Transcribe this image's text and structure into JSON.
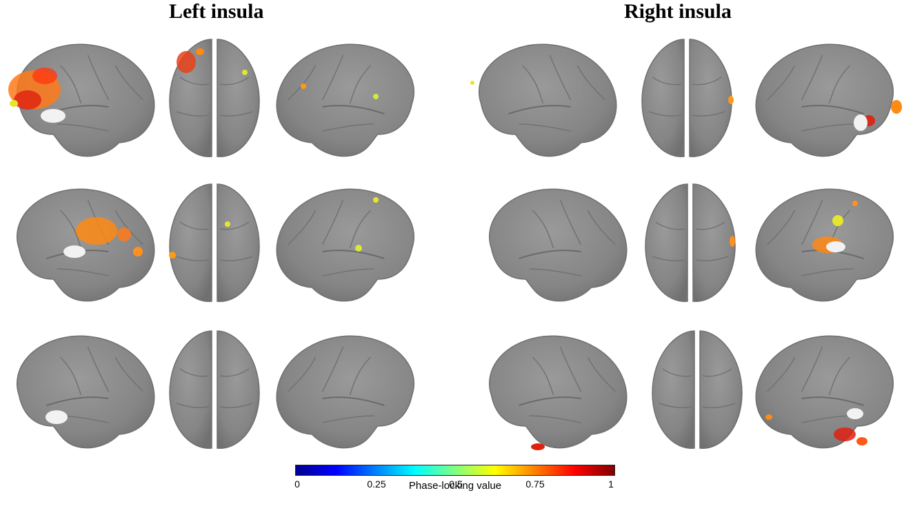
{
  "titles": {
    "left": "Left insula",
    "right": "Right insula"
  },
  "colorbar": {
    "ticks": [
      "0",
      "0.25",
      "0.5",
      "0.75",
      "1"
    ],
    "tick_values": [
      0,
      0.25,
      0.5,
      0.75,
      1
    ],
    "label": "Phase-locking value",
    "colormap": "jet",
    "range": [
      0,
      1
    ]
  },
  "panels": {
    "rows": 3,
    "groups": [
      "Left insula",
      "Right insula"
    ],
    "views": [
      "lateral-left",
      "dorsal",
      "lateral-right"
    ]
  },
  "colors": {
    "brain": "#8a8a8a",
    "seed": "#f2f2f2"
  }
}
